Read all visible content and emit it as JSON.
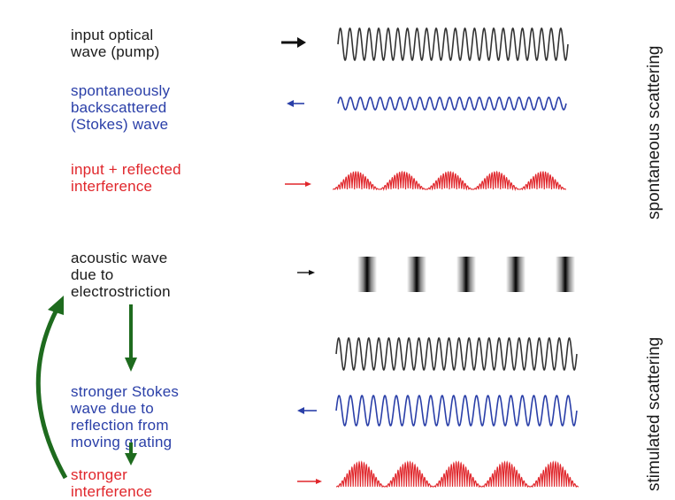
{
  "labels": {
    "pump": "input optical\nwave (pump)",
    "stokes": "spontaneously\nbackscattered\n(Stokes) wave",
    "interference": "input + reflected\ninterference",
    "acoustic": "acoustic wave\ndue to\nelectrostriction",
    "stronger_stokes": "stronger Stokes\nwave due to\nreflection from\nmoving grating",
    "stronger_interference": "stronger\ninterference"
  },
  "side_labels": {
    "spontaneous": "spontaneous scattering",
    "stimulated": "stimulated scattering"
  },
  "colors": {
    "black": "#1a1a1a",
    "blue": "#2a3fa8",
    "red": "#e0262b",
    "green": "#1e6b1e"
  },
  "waves": {
    "pump_cycles": 24,
    "stokes_cycles": 23,
    "interference_humps": 5,
    "acoustic_bars": 5,
    "stimulated_pump_cycles": 24,
    "stronger_stokes_cycles": 21,
    "stronger_interference_humps": 5
  }
}
